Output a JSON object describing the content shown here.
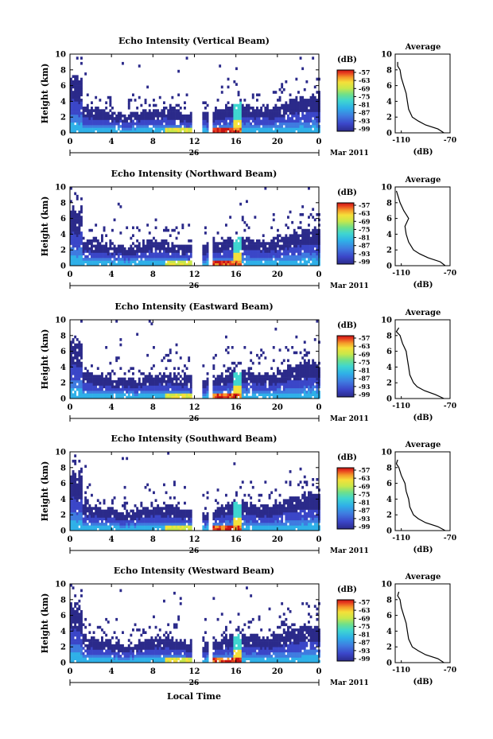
{
  "date_label": "Mar 2011",
  "day_label": "26",
  "xlabel_bottom": "Local Time",
  "ylabel": "Height (km)",
  "unit_label": "(dB)",
  "avg_title": "Average",
  "avg_xlabel": "(dB)",
  "x_ticks": [
    "0",
    "4",
    "8",
    "12",
    "16",
    "20",
    "0"
  ],
  "y_ticks": [
    "0",
    "2",
    "4",
    "6",
    "8",
    "10"
  ],
  "avg_x_ticks": [
    "-110",
    "-70"
  ],
  "colorbar_ticks": [
    "-57",
    "-63",
    "-69",
    "-75",
    "-81",
    "-87",
    "-93",
    "-99"
  ],
  "colors": {
    "scale": [
      "#2b2a8a",
      "#3b46c8",
      "#3f7be0",
      "#2fb0e8",
      "#3fd6d0",
      "#6fe08a",
      "#c8e84a",
      "#f5e03a",
      "#f59a2a",
      "#e8401f",
      "#c81414"
    ]
  },
  "chart_data": [
    {
      "type": "heatmap",
      "title": "Echo Intensity (Vertical Beam)",
      "xlabel": "",
      "ylabel": "Height (km)",
      "xlim": [
        0,
        24
      ],
      "ylim": [
        0,
        10
      ],
      "colorbar": {
        "label": "(dB)",
        "range": [
          -99,
          -57
        ]
      },
      "data_gaps_hours": [
        [
          11.6,
          12.6
        ],
        [
          13.3,
          13.6
        ]
      ],
      "average_profile": {
        "title": "Average",
        "xlabel": "(dB)",
        "xlim": [
          -115,
          -70
        ],
        "height_km": [
          0,
          0.5,
          1,
          1.5,
          2,
          3,
          4,
          5,
          6,
          7,
          8,
          8.5,
          9
        ],
        "db": [
          -75,
          -80,
          -90,
          -96,
          -101,
          -104,
          -105,
          -106,
          -108,
          -110,
          -111,
          -113,
          -113
        ]
      }
    },
    {
      "type": "heatmap",
      "title": "Echo Intensity (Northward Beam)",
      "xlabel": "",
      "ylabel": "Height (km)",
      "xlim": [
        0,
        24
      ],
      "ylim": [
        0,
        10
      ],
      "colorbar": {
        "label": "(dB)",
        "range": [
          -99,
          -57
        ]
      },
      "data_gaps_hours": [
        [
          11.6,
          12.6
        ],
        [
          13.3,
          13.6
        ]
      ],
      "average_profile": {
        "title": "Average",
        "xlabel": "(dB)",
        "xlim": [
          -115,
          -70
        ],
        "height_km": [
          0,
          0.5,
          1,
          1.5,
          2,
          3,
          4,
          5,
          6,
          7,
          8,
          9,
          9.5
        ],
        "db": [
          -74,
          -78,
          -88,
          -95,
          -100,
          -104,
          -106,
          -107,
          -104,
          -108,
          -111,
          -113,
          -114
        ]
      }
    },
    {
      "type": "heatmap",
      "title": "Echo Intensity (Eastward Beam)",
      "xlabel": "",
      "ylabel": "Height (km)",
      "xlim": [
        0,
        24
      ],
      "ylim": [
        0,
        10
      ],
      "colorbar": {
        "label": "(dB)",
        "range": [
          -99,
          -57
        ]
      },
      "data_gaps_hours": [
        [
          11.6,
          12.6
        ],
        [
          13.3,
          13.6
        ]
      ],
      "average_profile": {
        "title": "Average",
        "xlabel": "(dB)",
        "xlim": [
          -115,
          -70
        ],
        "height_km": [
          0,
          0.5,
          1,
          1.5,
          2,
          3,
          4,
          5,
          6,
          7,
          8,
          8.5,
          9
        ],
        "db": [
          -75,
          -82,
          -91,
          -97,
          -100,
          -103,
          -104,
          -105,
          -106,
          -109,
          -111,
          -114,
          -112
        ]
      }
    },
    {
      "type": "heatmap",
      "title": "Echo Intensity (Southward Beam)",
      "xlabel": "",
      "ylabel": "Height (km)",
      "xlim": [
        0,
        24
      ],
      "ylim": [
        0,
        10
      ],
      "colorbar": {
        "label": "(dB)",
        "range": [
          -99,
          -57
        ]
      },
      "data_gaps_hours": [
        [
          11.6,
          12.6
        ],
        [
          13.3,
          13.6
        ]
      ],
      "average_profile": {
        "title": "Average",
        "xlabel": "(dB)",
        "xlim": [
          -115,
          -70
        ],
        "height_km": [
          0,
          0.5,
          1,
          1.5,
          2,
          3,
          4,
          5,
          6,
          7,
          8,
          8.5,
          9
        ],
        "db": [
          -74,
          -80,
          -90,
          -96,
          -100,
          -103,
          -104,
          -106,
          -107,
          -110,
          -112,
          -114,
          -113
        ]
      }
    },
    {
      "type": "heatmap",
      "title": "Echo Intensity (Westward Beam)",
      "xlabel": "Local Time",
      "ylabel": "Height (km)",
      "xlim": [
        0,
        24
      ],
      "ylim": [
        0,
        10
      ],
      "colorbar": {
        "label": "(dB)",
        "range": [
          -99,
          -57
        ]
      },
      "data_gaps_hours": [
        [
          11.6,
          12.6
        ],
        [
          13.3,
          13.6
        ]
      ],
      "average_profile": {
        "title": "Average",
        "xlabel": "(dB)",
        "xlim": [
          -115,
          -70
        ],
        "height_km": [
          0,
          0.5,
          1,
          1.5,
          2,
          3,
          4,
          5,
          6,
          7,
          8,
          8.5,
          9
        ],
        "db": [
          -75,
          -80,
          -90,
          -96,
          -101,
          -104,
          -105,
          -106,
          -108,
          -110,
          -111,
          -113,
          -112
        ]
      }
    }
  ]
}
